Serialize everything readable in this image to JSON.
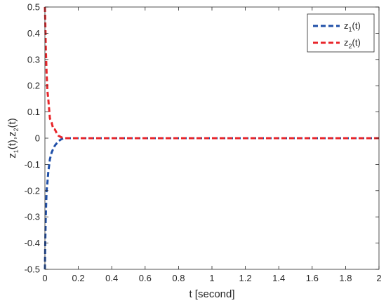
{
  "chart_data": {
    "type": "line",
    "xlabel": "t [second]",
    "ylabel_parts": [
      "z",
      "1",
      "(t),z",
      "2",
      "(t)"
    ],
    "xlim": [
      0,
      2
    ],
    "ylim": [
      -0.5,
      0.5
    ],
    "x_ticks": [
      "0",
      "0.2",
      "0.4",
      "0.6",
      "0.8",
      "1",
      "1.2",
      "1.4",
      "1.6",
      "1.8",
      "2"
    ],
    "y_ticks": [
      "-0.5",
      "-0.4",
      "-0.3",
      "-0.2",
      "-0.1",
      "0",
      "0.1",
      "0.2",
      "0.3",
      "0.4",
      "0.5"
    ],
    "grid": false,
    "legend_position": "top-right",
    "series": [
      {
        "name_base": "z",
        "name_sub": "1",
        "name_suffix": "(t)",
        "color": "#1f4fa8",
        "dash": "dashed",
        "x": [
          0,
          0.002,
          0.005,
          0.01,
          0.015,
          0.02,
          0.03,
          0.04,
          0.05,
          0.06,
          0.08,
          0.1,
          0.12,
          0.15,
          0.2,
          0.5,
          1.0,
          1.5,
          2.0
        ],
        "y": [
          -0.5,
          -0.4,
          -0.3,
          -0.2,
          -0.17,
          -0.13,
          -0.08,
          -0.055,
          -0.04,
          -0.028,
          -0.012,
          -0.003,
          0,
          0,
          0,
          0,
          0,
          0,
          0
        ]
      },
      {
        "name_base": "z",
        "name_sub": "2",
        "name_suffix": "(t)",
        "color": "#e8262b",
        "dash": "dashed",
        "x": [
          0,
          0.002,
          0.005,
          0.01,
          0.015,
          0.02,
          0.03,
          0.04,
          0.05,
          0.06,
          0.07,
          0.08,
          0.1,
          0.12,
          0.15,
          0.2,
          0.5,
          1.0,
          1.5,
          2.0
        ],
        "y": [
          0.5,
          0.45,
          0.35,
          0.25,
          0.18,
          0.15,
          0.075,
          0.06,
          0.035,
          0.033,
          0.02,
          0.01,
          0.003,
          0,
          0,
          0,
          0,
          0,
          0,
          0
        ]
      }
    ]
  }
}
